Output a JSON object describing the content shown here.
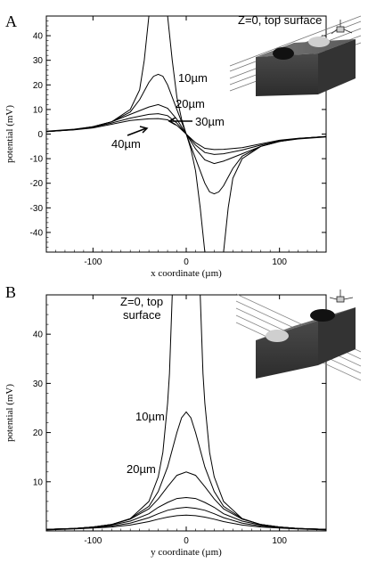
{
  "chart_data": [
    {
      "panel_label": "A",
      "type": "line",
      "xlabel": "x coordinate (µm)",
      "ylabel": "potential (mV)",
      "xlim": [
        -150,
        150
      ],
      "ylim": [
        -48,
        48
      ],
      "xticks": [
        -100,
        0,
        100
      ],
      "yticks": [
        -40,
        -30,
        -20,
        -10,
        0,
        10,
        20,
        30,
        40
      ],
      "annotation_title": "Z=0, top surface",
      "curve_labels": [
        "10µm",
        "20µm",
        "30µm",
        "40µm"
      ],
      "series": [
        {
          "x": [
            -150,
            -120,
            -100,
            -80,
            -60,
            -50,
            -45,
            -40,
            -38,
            -35,
            -30,
            -25,
            -22,
            -20,
            -15,
            -10,
            -5,
            0,
            5,
            10,
            15,
            20,
            22,
            25,
            30,
            35,
            38,
            40,
            45,
            50,
            60,
            80,
            100,
            120,
            150
          ],
          "y": [
            1.2,
            2,
            3,
            5,
            10,
            18,
            30,
            48,
            48,
            48,
            48,
            48,
            48,
            48,
            30,
            15,
            6,
            0,
            -6,
            -15,
            -30,
            -48,
            -48,
            -48,
            -48,
            -48,
            -48,
            -48,
            -30,
            -18,
            -10,
            -5,
            -3,
            -2,
            -1.2
          ]
        },
        {
          "x": [
            -150,
            -120,
            -100,
            -80,
            -60,
            -50,
            -40,
            -35,
            -30,
            -25,
            -20,
            -10,
            0,
            10,
            20,
            25,
            30,
            35,
            40,
            50,
            60,
            80,
            100,
            120,
            150
          ],
          "y": [
            1,
            1.8,
            3,
            5,
            9,
            14,
            21,
            23.5,
            24.3,
            23.5,
            20,
            10,
            0,
            -10,
            -20,
            -23.5,
            -24.3,
            -23.5,
            -21,
            -14,
            -9,
            -5,
            -3,
            -1.8,
            -1
          ]
        },
        {
          "x": [
            -150,
            -120,
            -100,
            -80,
            -60,
            -40,
            -30,
            -20,
            -10,
            0,
            10,
            20,
            30,
            40,
            60,
            80,
            100,
            120,
            150
          ],
          "y": [
            1,
            1.8,
            3,
            5,
            8,
            11,
            12,
            10.5,
            6,
            0,
            -6,
            -10.5,
            -12,
            -11,
            -8,
            -5,
            -3,
            -1.8,
            -1
          ]
        },
        {
          "x": [
            -150,
            -120,
            -100,
            -80,
            -60,
            -40,
            -30,
            -20,
            -10,
            0,
            10,
            20,
            30,
            40,
            60,
            80,
            100,
            120,
            150
          ],
          "y": [
            1,
            1.8,
            2.8,
            4.5,
            6.5,
            8,
            8.3,
            7.5,
            4.5,
            0,
            -4.5,
            -7.5,
            -8.3,
            -8,
            -6.5,
            -4.5,
            -2.8,
            -1.8,
            -1
          ]
        },
        {
          "x": [
            -150,
            -120,
            -100,
            -80,
            -60,
            -40,
            -30,
            -20,
            -10,
            0,
            10,
            20,
            30,
            40,
            60,
            80,
            100,
            120,
            150
          ],
          "y": [
            1,
            1.7,
            2.5,
            4,
            5.5,
            6.2,
            6.3,
            5.8,
            3.5,
            0,
            -3.5,
            -5.8,
            -6.3,
            -6.2,
            -5.5,
            -4,
            -2.5,
            -1.7,
            -1
          ]
        }
      ]
    },
    {
      "panel_label": "B",
      "type": "line",
      "xlabel": "y coordinate (µm)",
      "ylabel": "potential (mV)",
      "xlim": [
        -150,
        150
      ],
      "ylim": [
        0,
        48
      ],
      "xticks": [
        -100,
        0,
        100
      ],
      "yticks": [
        10,
        20,
        30,
        40
      ],
      "annotation_title": [
        "Z=0, top",
        "surface"
      ],
      "curve_labels": [
        "10µm",
        "20µm"
      ],
      "series": [
        {
          "x": [
            -150,
            -120,
            -100,
            -80,
            -60,
            -40,
            -30,
            -25,
            -20,
            -18,
            -15,
            -10,
            -5,
            0,
            5,
            10,
            15,
            18,
            20,
            25,
            30,
            40,
            60,
            80,
            100,
            120,
            150
          ],
          "y": [
            0.3,
            0.5,
            0.8,
            1.3,
            2.5,
            6,
            11,
            16,
            26,
            32,
            48,
            48,
            48,
            48,
            48,
            48,
            48,
            32,
            26,
            16,
            11,
            6,
            2.5,
            1.3,
            0.8,
            0.5,
            0.3
          ]
        },
        {
          "x": [
            -150,
            -120,
            -100,
            -80,
            -60,
            -40,
            -30,
            -20,
            -10,
            -5,
            0,
            5,
            10,
            20,
            30,
            40,
            60,
            80,
            100,
            120,
            150
          ],
          "y": [
            0.3,
            0.5,
            0.8,
            1.3,
            2.5,
            5,
            8,
            13,
            20,
            23,
            24.2,
            23,
            20,
            13,
            8,
            5,
            2.5,
            1.3,
            0.8,
            0.5,
            0.3
          ]
        },
        {
          "x": [
            -150,
            -120,
            -100,
            -80,
            -60,
            -40,
            -30,
            -20,
            -10,
            0,
            10,
            20,
            30,
            40,
            60,
            80,
            100,
            120,
            150
          ],
          "y": [
            0.3,
            0.5,
            0.8,
            1.3,
            2.4,
            4.5,
            6.5,
            9,
            11.3,
            12,
            11.3,
            9,
            6.5,
            4.5,
            2.4,
            1.3,
            0.8,
            0.5,
            0.3
          ]
        },
        {
          "x": [
            -150,
            -120,
            -100,
            -80,
            -60,
            -40,
            -30,
            -20,
            -10,
            0,
            10,
            20,
            30,
            40,
            60,
            80,
            100,
            120,
            150
          ],
          "y": [
            0.3,
            0.5,
            0.8,
            1.2,
            2,
            3.5,
            4.8,
            5.8,
            6.6,
            6.8,
            6.6,
            5.8,
            4.8,
            3.5,
            2,
            1.2,
            0.8,
            0.5,
            0.3
          ]
        },
        {
          "x": [
            -150,
            -120,
            -100,
            -80,
            -60,
            -40,
            -30,
            -20,
            -10,
            0,
            10,
            20,
            30,
            40,
            60,
            80,
            100,
            120,
            150
          ],
          "y": [
            0.3,
            0.5,
            0.7,
            1,
            1.6,
            2.7,
            3.5,
            4.2,
            4.6,
            4.8,
            4.6,
            4.2,
            3.5,
            2.7,
            1.6,
            1,
            0.7,
            0.5,
            0.3
          ]
        },
        {
          "x": [
            -150,
            -120,
            -100,
            -80,
            -60,
            -40,
            -30,
            -20,
            -10,
            0,
            10,
            20,
            30,
            40,
            60,
            80,
            100,
            120,
            150
          ],
          "y": [
            0.2,
            0.4,
            0.6,
            0.8,
            1.2,
            1.9,
            2.4,
            2.8,
            3.1,
            3.2,
            3.1,
            2.8,
            2.4,
            1.9,
            1.2,
            0.8,
            0.6,
            0.4,
            0.2
          ]
        }
      ]
    }
  ]
}
